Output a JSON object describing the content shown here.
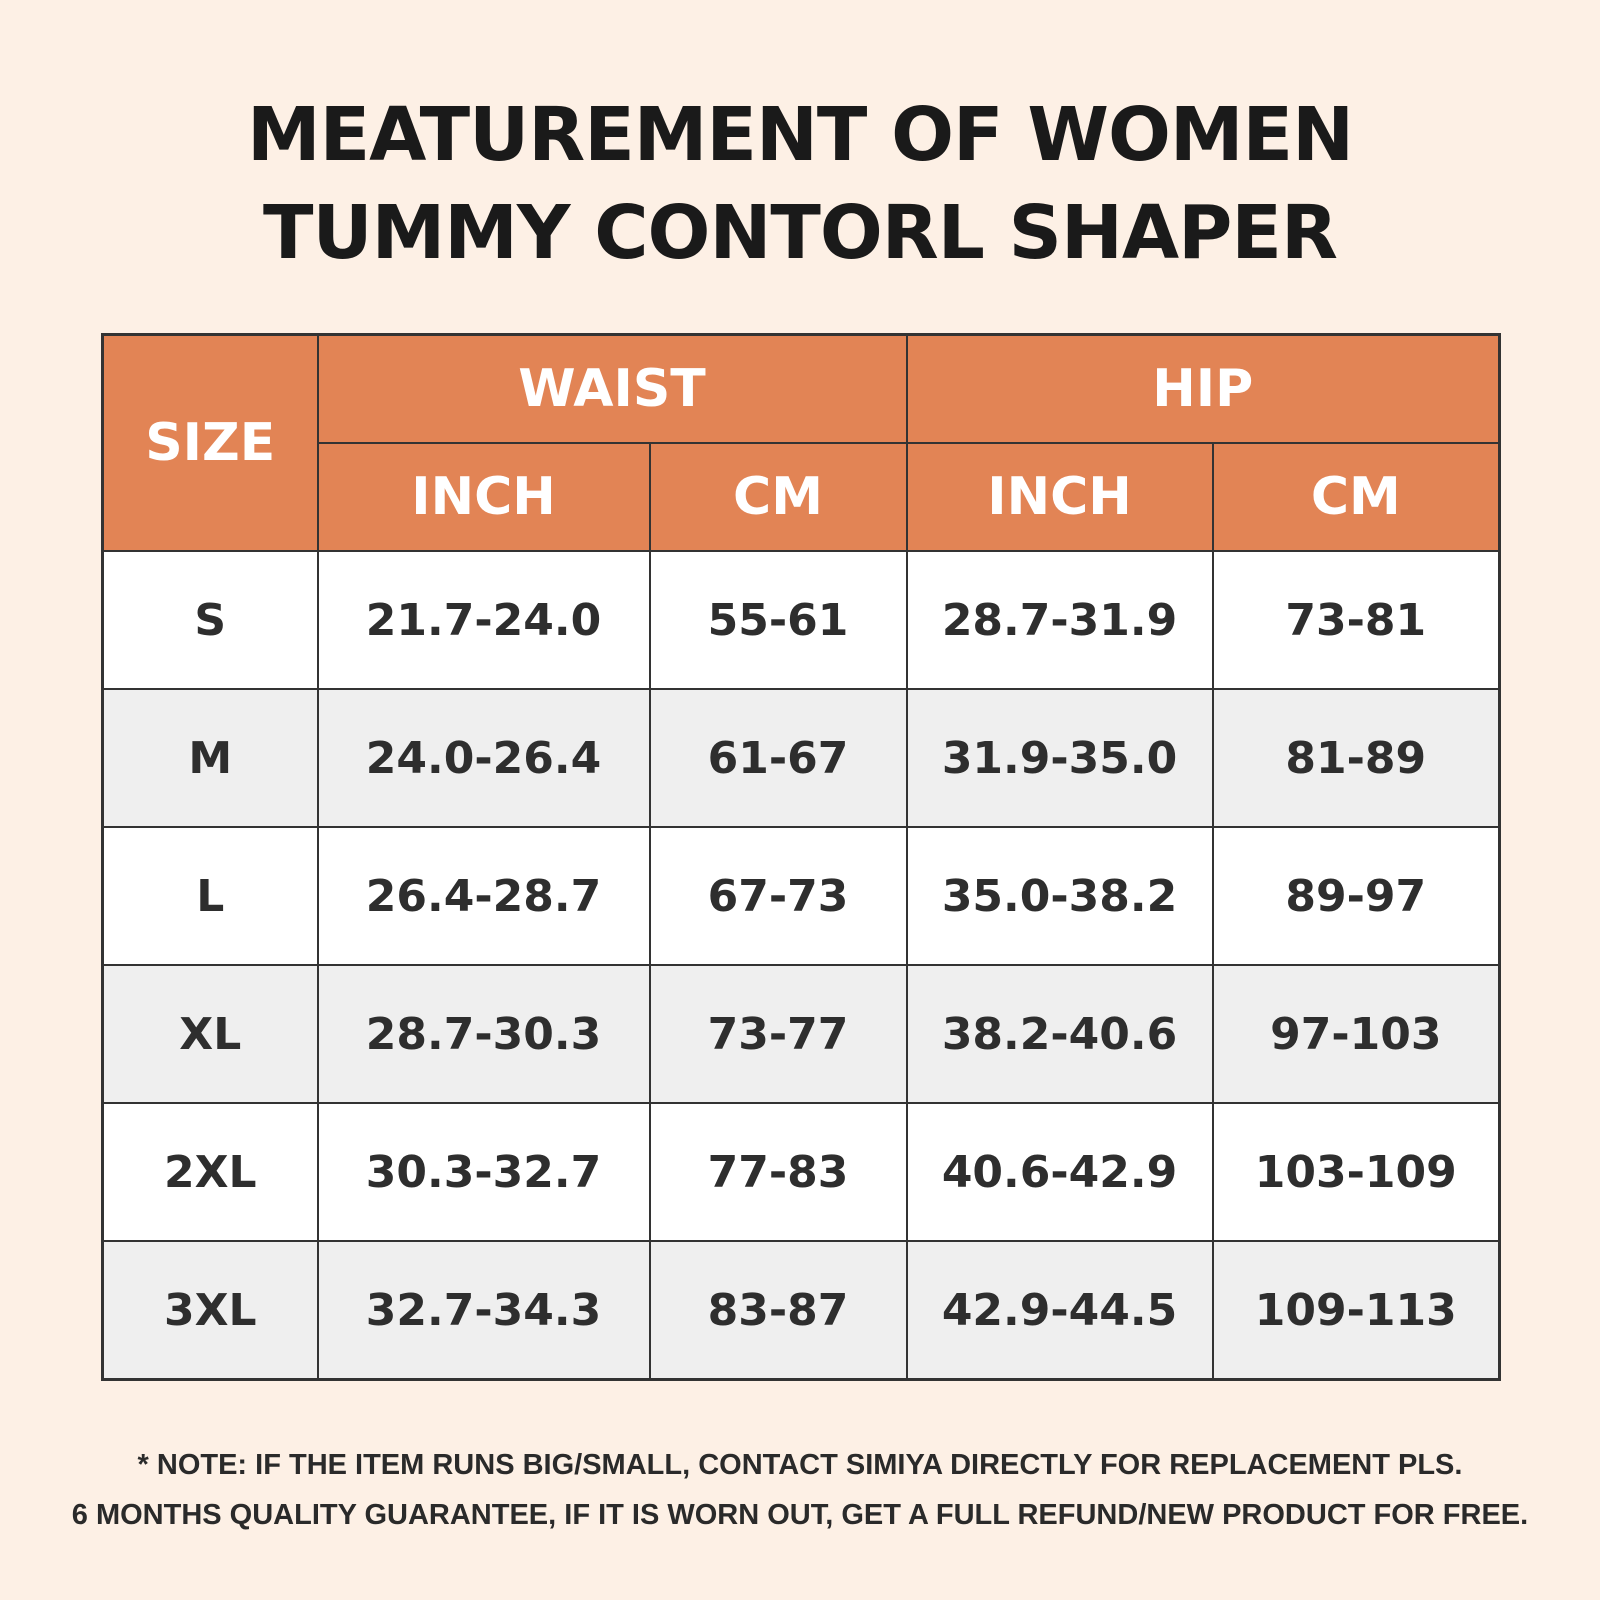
{
  "title": {
    "line1": "MEATUREMENT OF WOMEN",
    "line2": "TUMMY CONTORL SHAPER"
  },
  "table": {
    "header": {
      "size": "SIZE",
      "waist": "WAIST",
      "hip": "HIP",
      "waist_inch": "INCH",
      "waist_cm": "CM",
      "hip_inch": "INCH",
      "hip_cm": "CM"
    },
    "rows": [
      {
        "size": "S",
        "waist_inch": "21.7-24.0",
        "waist_cm": "55-61",
        "hip_inch": "28.7-31.9",
        "hip_cm": "73-81"
      },
      {
        "size": "M",
        "waist_inch": "24.0-26.4",
        "waist_cm": "61-67",
        "hip_inch": "31.9-35.0",
        "hip_cm": "81-89"
      },
      {
        "size": "L",
        "waist_inch": "26.4-28.7",
        "waist_cm": "67-73",
        "hip_inch": "35.0-38.2",
        "hip_cm": "89-97"
      },
      {
        "size": "XL",
        "waist_inch": "28.7-30.3",
        "waist_cm": "73-77",
        "hip_inch": "38.2-40.6",
        "hip_cm": "97-103"
      },
      {
        "size": "2XL",
        "waist_inch": "30.3-32.7",
        "waist_cm": "77-83",
        "hip_inch": "40.6-42.9",
        "hip_cm": "103-109"
      },
      {
        "size": "3XL",
        "waist_inch": "32.7-34.3",
        "waist_cm": "83-87",
        "hip_inch": "42.9-44.5",
        "hip_cm": "109-113"
      }
    ]
  },
  "note": {
    "line1": "* NOTE: IF THE ITEM RUNS BIG/SMALL, CONTACT SIMIYA DIRECTLY FOR REPLACEMENT PLS.",
    "line2": "6 MONTHS QUALITY GUARANTEE, IF IT IS WORN OUT, GET A FULL REFUND/NEW PRODUCT FOR FREE."
  },
  "colors": {
    "background": "#fdf0e5",
    "header": "#e28455",
    "row_alt": "#efefef",
    "border": "#333333"
  }
}
